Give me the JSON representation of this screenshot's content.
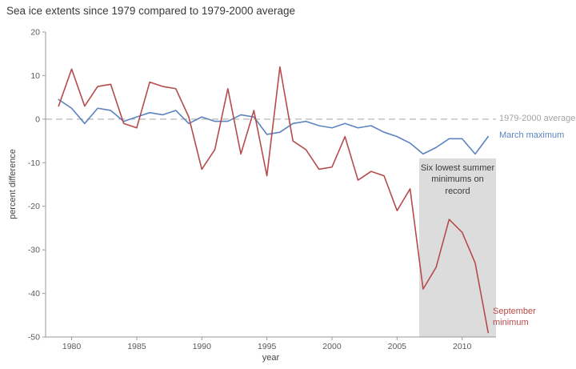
{
  "title": "Sea ice extents since 1979 compared to 1979-2000 average",
  "colors": {
    "march": "#5b84c0",
    "september": "#b54b4a",
    "average_line": "#b5b5b5",
    "axis": "#999999",
    "tick_text": "#5a5a5a",
    "shade": "#dcdcdc"
  },
  "labels": {
    "y_axis": "percent difference",
    "x_axis": "year",
    "average": "1979-2000 average",
    "march": "March maximum",
    "september": "September minimum",
    "annotation": "Six lowest summer minimums on record"
  },
  "chart_data": {
    "type": "line",
    "title": "Sea ice extents since 1979 compared to 1979-2000 average",
    "xlabel": "year",
    "ylabel": "percent difference",
    "x_range": [
      1978,
      2012.6
    ],
    "y_range": [
      -50,
      20
    ],
    "x_ticks": [
      1980,
      1985,
      1990,
      1995,
      2000,
      2005,
      2010
    ],
    "y_ticks": [
      20,
      10,
      0,
      -10,
      -20,
      -30,
      -40,
      -50
    ],
    "zero_line": 0,
    "grid": false,
    "legend_position": "right-edge-labels",
    "shaded_region": {
      "x0": 2006.7,
      "x1": 2012.6,
      "y_top": -9,
      "y_bottom": -50,
      "label": "Six lowest summer minimums on record"
    },
    "years": [
      1979,
      1980,
      1981,
      1982,
      1983,
      1984,
      1985,
      1986,
      1987,
      1988,
      1989,
      1990,
      1991,
      1992,
      1993,
      1994,
      1995,
      1996,
      1997,
      1998,
      1999,
      2000,
      2001,
      2002,
      2003,
      2004,
      2005,
      2006,
      2007,
      2008,
      2009,
      2010,
      2011,
      2012
    ],
    "series": [
      {
        "name": "March maximum",
        "color": "#5b84c0",
        "values": [
          4.5,
          2.5,
          -1,
          2.5,
          2,
          -0.5,
          0.5,
          1.5,
          1,
          2,
          -1,
          0.5,
          -0.5,
          -0.5,
          1,
          0.5,
          -3.5,
          -3,
          -1,
          -0.5,
          -1.5,
          -2,
          -1,
          -2,
          -1.5,
          -3,
          -4,
          -5.5,
          -8,
          -6.5,
          -4.5,
          -4.5,
          -8,
          -4
        ]
      },
      {
        "name": "September minimum",
        "color": "#b54b4a",
        "values": [
          3,
          11.5,
          3,
          7.5,
          8,
          -1,
          -2,
          8.5,
          7.5,
          7,
          0.5,
          -11.5,
          -7,
          7,
          -8,
          2,
          -13,
          12,
          -5,
          -7,
          -11.5,
          -11,
          -4,
          -14,
          -12,
          -13,
          -21,
          -16,
          -39,
          -34,
          -23,
          -26,
          -33,
          -49
        ]
      }
    ]
  }
}
